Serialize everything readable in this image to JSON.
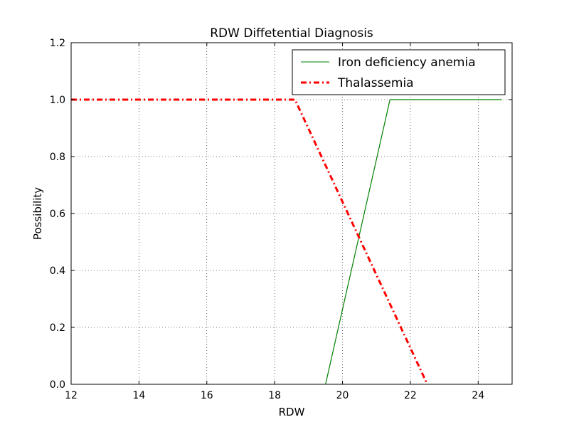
{
  "chart_data": {
    "type": "line",
    "title": "RDW Diffetential Diagnosis",
    "xlabel": "RDW",
    "ylabel": "Possibility",
    "xlim": [
      12,
      25
    ],
    "ylim": [
      0,
      1.2
    ],
    "xticks": [
      12,
      14,
      16,
      18,
      20,
      22,
      24
    ],
    "yticks": [
      0.0,
      0.2,
      0.4,
      0.6,
      0.8,
      1.0,
      1.2
    ],
    "xtick_labels": [
      "12",
      "14",
      "16",
      "18",
      "20",
      "22",
      "24"
    ],
    "ytick_labels": [
      "0.0",
      "0.2",
      "0.4",
      "0.6",
      "0.8",
      "1.0",
      "1.2"
    ],
    "grid": true,
    "legend_position": "top-right",
    "series": [
      {
        "name": "Iron deficiency anemia",
        "color": "#008000",
        "style": "solid",
        "x": [
          19.5,
          21.4,
          24.7
        ],
        "y": [
          0.0,
          1.0,
          1.0
        ]
      },
      {
        "name": "Thalassemia",
        "color": "#ff0000",
        "style": "dashdot",
        "x": [
          12.0,
          18.6,
          22.5
        ],
        "y": [
          1.0,
          1.0,
          0.0
        ]
      }
    ]
  }
}
